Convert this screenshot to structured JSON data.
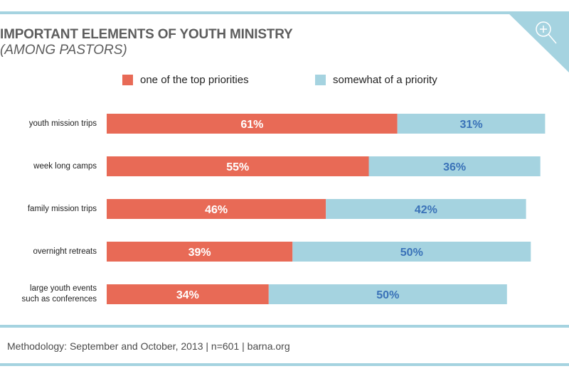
{
  "colors": {
    "top_priority": "#e86a56",
    "somewhat": "#a5d3e0",
    "somewhat_label": "#3a72b8",
    "top_label": "#ffffff",
    "rule": "#a5d3e0"
  },
  "header": {
    "zoom_icon": "zoom-in-magnifier-icon"
  },
  "chart_data": {
    "type": "bar",
    "orientation": "horizontal",
    "stacked": true,
    "title": "IMPORTANT ELEMENTS OF YOUTH MINISTRY",
    "subtitle": "(AMONG PASTORS)",
    "categories": [
      "youth mission trips",
      "week long camps",
      "family mission trips",
      "overnight retreats",
      "large youth events such as conferences"
    ],
    "category_lines": [
      [
        "youth mission trips"
      ],
      [
        "week long camps"
      ],
      [
        "family mission trips"
      ],
      [
        "overnight retreats"
      ],
      [
        "large youth events",
        "such as conferences"
      ]
    ],
    "series": [
      {
        "name": "one of the top priorities",
        "values": [
          61,
          55,
          46,
          39,
          34
        ],
        "labels": [
          "61%",
          "55%",
          "46%",
          "39%",
          "34%"
        ]
      },
      {
        "name": "somewhat of a priority",
        "values": [
          31,
          36,
          42,
          50,
          50
        ],
        "labels": [
          "31%",
          "36%",
          "42%",
          "50%",
          "50%"
        ]
      }
    ],
    "xlabel": "",
    "ylabel": "",
    "xlim": [
      0,
      100
    ],
    "grid": false,
    "legend_position": "top-center"
  },
  "footer": {
    "methodology": "Methodology: September and October, 2013 | n=601 | barna.org"
  }
}
